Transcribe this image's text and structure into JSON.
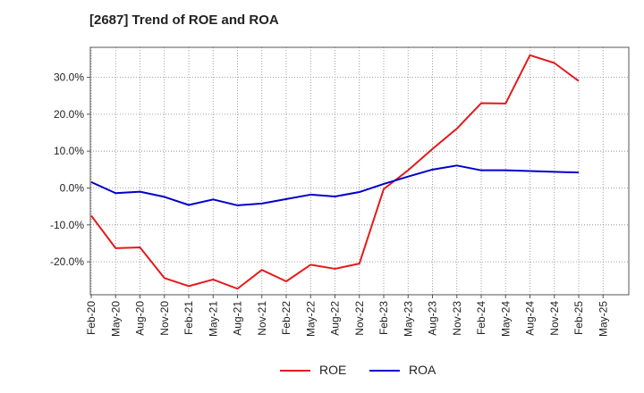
{
  "title": "[2687]  Trend of ROE and ROA",
  "chart_data": {
    "type": "line",
    "title": "[2687]  Trend of ROE and ROA",
    "x": [
      "Feb-20",
      "May-20",
      "Aug-20",
      "Nov-20",
      "Feb-21",
      "May-21",
      "Aug-21",
      "Nov-21",
      "Feb-22",
      "May-22",
      "Aug-22",
      "Nov-22",
      "Feb-23",
      "May-23",
      "Aug-23",
      "Nov-23",
      "Feb-24",
      "May-24",
      "Aug-24",
      "Nov-24",
      "Feb-25",
      "May-25"
    ],
    "ylim": [
      -29,
      38
    ],
    "yticks": [
      -20,
      -10,
      0,
      10,
      20,
      30
    ],
    "ytick_labels": [
      "-20.0%",
      "-10.0%",
      "0.0%",
      "10.0%",
      "20.0%",
      "30.0%"
    ],
    "grid": true,
    "legend_position": "bottom",
    "series": [
      {
        "name": "ROE",
        "color": "#e31a1c",
        "values": [
          -7.5,
          -16.3,
          -16.1,
          -24.4,
          -26.6,
          -24.8,
          -27.3,
          -22.2,
          -25.3,
          -20.8,
          -21.9,
          -20.5,
          -0.3,
          4.8,
          10.6,
          16.1,
          23.0,
          22.9,
          36.0,
          33.9,
          29.0,
          null
        ]
      },
      {
        "name": "ROA",
        "color": "#0000cc",
        "values": [
          1.6,
          -1.4,
          -1.0,
          -2.4,
          -4.6,
          -3.1,
          -4.7,
          -4.2,
          -3.0,
          -1.8,
          -2.3,
          -1.1,
          1.1,
          3.1,
          5.0,
          6.1,
          4.8,
          4.8,
          4.6,
          4.4,
          4.2,
          null
        ]
      }
    ]
  }
}
